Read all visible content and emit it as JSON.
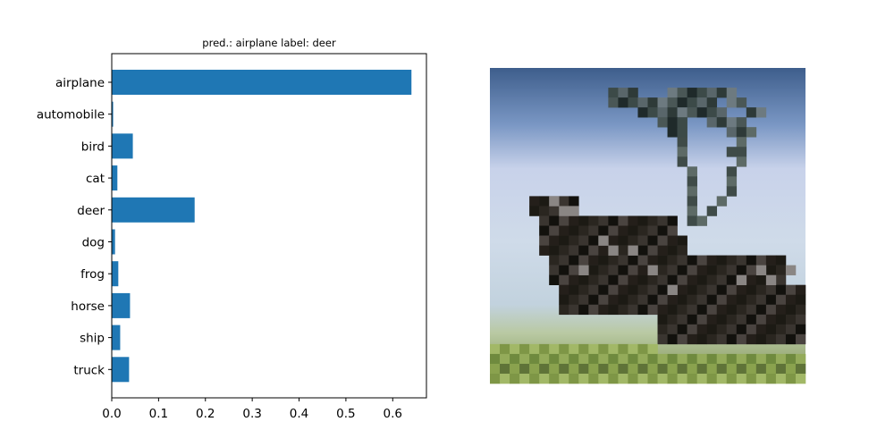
{
  "figure": {
    "title": "pred.: airplane   label: deer",
    "bar_color": "#1f77b4"
  },
  "chart_data": {
    "type": "bar",
    "orientation": "horizontal",
    "title": "pred.: airplane   label: deer",
    "xlabel": "",
    "ylabel": "",
    "categories": [
      "airplane",
      "automobile",
      "bird",
      "cat",
      "deer",
      "dog",
      "frog",
      "horse",
      "ship",
      "truck"
    ],
    "values": [
      0.64,
      0.003,
      0.045,
      0.012,
      0.177,
      0.007,
      0.014,
      0.039,
      0.018,
      0.037
    ],
    "xlim": [
      0,
      0.672
    ],
    "xticks": [
      0.0,
      0.1,
      0.2,
      0.3,
      0.4,
      0.5,
      0.6
    ],
    "xtick_labels": [
      "0.0",
      "0.1",
      "0.2",
      "0.3",
      "0.4",
      "0.5",
      "0.6"
    ],
    "grid": false,
    "legend": "none"
  },
  "image_panel": {
    "description_icon": "cifar-input-image"
  }
}
